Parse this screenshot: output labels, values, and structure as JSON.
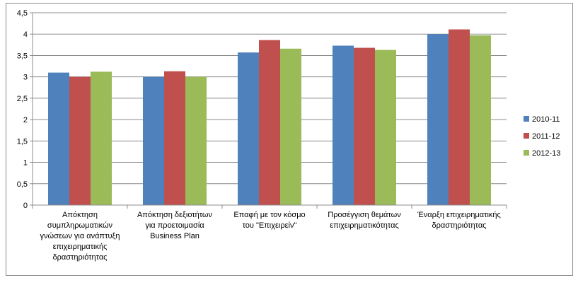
{
  "chart_data": {
    "type": "bar",
    "title": "",
    "xlabel": "",
    "ylabel": "",
    "ylim": [
      0,
      4.5
    ],
    "y_ticks": [
      "0",
      "0,5",
      "1",
      "1,5",
      "2",
      "2,5",
      "3",
      "3,5",
      "4",
      "4,5"
    ],
    "grid": "horizontal",
    "legend_position": "right",
    "categories": [
      [
        "Απόκτηση",
        "συμπληρωματικών",
        "γνώσεων για ανάπτυξη",
        "επιχειρηματικής",
        "δραστηριότητας"
      ],
      [
        "Απόκτηση δεξιοτήτων",
        "για προετοιμασία",
        "Business Plan"
      ],
      [
        "Επαφή με τον κόσμο",
        "του \"Επιχειρείν\""
      ],
      [
        "Προσέγγιση θεμάτων",
        "επιχειρηματικότητας"
      ],
      [
        "Έναρξη επιχειρηματικής",
        "δραστηριότητας"
      ]
    ],
    "series": [
      {
        "name": "2010-11",
        "color": "#4f81bd",
        "values": [
          3.1,
          3.0,
          3.57,
          3.73,
          4.0
        ]
      },
      {
        "name": "2011-12",
        "color": "#c0504d",
        "values": [
          3.0,
          3.13,
          3.86,
          3.68,
          4.11
        ]
      },
      {
        "name": "2012-13",
        "color": "#9bbb59",
        "values": [
          3.12,
          3.0,
          3.66,
          3.63,
          3.97
        ]
      }
    ]
  }
}
